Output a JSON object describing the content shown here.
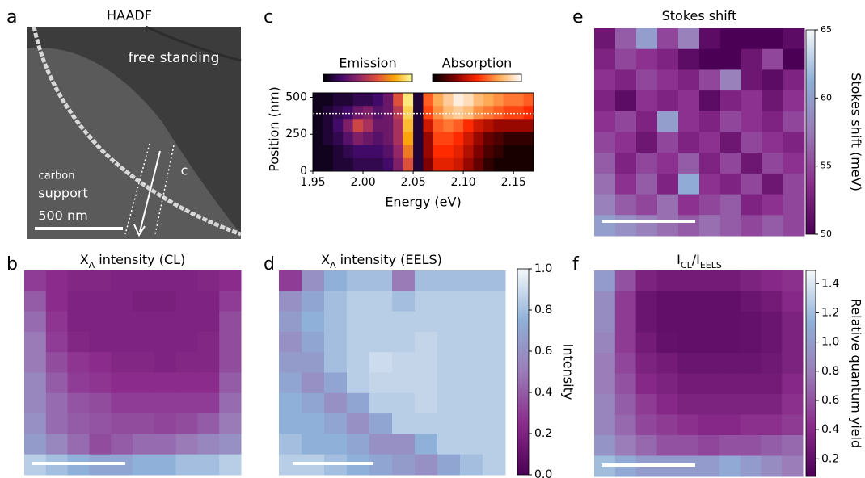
{
  "chart_data": [
    {
      "type": "image",
      "panel": "a",
      "title": "HAADF",
      "region_top": "free standing",
      "region_bottom": [
        "carbon",
        "support"
      ],
      "scalebar": "500 nm",
      "arrow_label": "c"
    },
    {
      "type": "heatmap",
      "panel": "b",
      "title": [
        {
          "text": "X"
        },
        {
          "text": "A",
          "sub": true
        },
        {
          "text": " intensity (CL)"
        }
      ],
      "clim": [
        0,
        1
      ],
      "colormap": [
        "#4b0055",
        "#8b2c8c",
        "#9a7bb8",
        "#8fb0d8",
        "#f5f8fb"
      ],
      "grid": [
        [
          0.3,
          0.25,
          0.22,
          0.22,
          0.2,
          0.2,
          0.2,
          0.2,
          0.22,
          0.25
        ],
        [
          0.4,
          0.25,
          0.2,
          0.2,
          0.2,
          0.18,
          0.18,
          0.2,
          0.2,
          0.3
        ],
        [
          0.45,
          0.28,
          0.2,
          0.2,
          0.2,
          0.2,
          0.2,
          0.2,
          0.2,
          0.35
        ],
        [
          0.5,
          0.3,
          0.22,
          0.2,
          0.2,
          0.2,
          0.2,
          0.2,
          0.22,
          0.35
        ],
        [
          0.5,
          0.35,
          0.28,
          0.25,
          0.22,
          0.22,
          0.2,
          0.22,
          0.22,
          0.35
        ],
        [
          0.55,
          0.4,
          0.3,
          0.28,
          0.25,
          0.25,
          0.25,
          0.25,
          0.25,
          0.4
        ],
        [
          0.55,
          0.45,
          0.38,
          0.35,
          0.3,
          0.3,
          0.3,
          0.3,
          0.3,
          0.45
        ],
        [
          0.6,
          0.45,
          0.4,
          0.38,
          0.35,
          0.35,
          0.33,
          0.35,
          0.4,
          0.5
        ],
        [
          0.65,
          0.55,
          0.45,
          0.35,
          0.4,
          0.45,
          0.45,
          0.5,
          0.55,
          0.6
        ],
        [
          0.85,
          0.8,
          0.75,
          0.7,
          0.7,
          0.75,
          0.75,
          0.8,
          0.8,
          0.85
        ]
      ]
    },
    {
      "type": "spectrum",
      "panel": "c",
      "xlabel": "Energy (eV)",
      "ylabel": "Position (nm)",
      "xlim": [
        1.95,
        2.17
      ],
      "xticks": [
        1.95,
        {
          "value": 2.0,
          "label": "2.00"
        },
        2.05,
        {
          "value": 2.1,
          "label": "2.10"
        },
        2.15
      ],
      "ylim": [
        0,
        530
      ],
      "yticks": [
        0,
        250,
        500
      ],
      "marker_position": 390,
      "emission": {
        "name": "Emission",
        "xlim": [
          1.95,
          2.06
        ],
        "colormap": [
          "#000004",
          "#420a68",
          "#932667",
          "#dd513a",
          "#fca50a",
          "#fcffa4"
        ],
        "grid": [
          [
            0.05,
            0.05,
            0.1,
            0.1,
            0.15,
            0.15,
            0.2,
            0.3,
            0.6,
            0.95,
            0.1
          ],
          [
            0.05,
            0.1,
            0.15,
            0.2,
            0.3,
            0.35,
            0.25,
            0.3,
            0.5,
            0.9,
            0.1
          ],
          [
            0.05,
            0.1,
            0.2,
            0.35,
            0.55,
            0.45,
            0.3,
            0.3,
            0.45,
            0.85,
            0.1
          ],
          [
            0.05,
            0.1,
            0.15,
            0.25,
            0.35,
            0.3,
            0.25,
            0.3,
            0.45,
            0.8,
            0.1
          ],
          [
            0.05,
            0.05,
            0.1,
            0.15,
            0.2,
            0.2,
            0.2,
            0.25,
            0.4,
            0.7,
            0.1
          ],
          [
            0.05,
            0.05,
            0.1,
            0.1,
            0.15,
            0.15,
            0.15,
            0.2,
            0.35,
            0.6,
            0.1
          ]
        ]
      },
      "absorption": {
        "name": "Absorption",
        "xlim": [
          2.06,
          2.17
        ],
        "colormap": [
          "#000000",
          "#7f0000",
          "#ff2a00",
          "#ffaa55",
          "#ffffff"
        ],
        "grid": [
          [
            0.6,
            0.75,
            0.85,
            0.95,
            0.9,
            0.8,
            0.75,
            0.7,
            0.65,
            0.65,
            0.6
          ],
          [
            0.55,
            0.7,
            0.8,
            0.85,
            0.8,
            0.7,
            0.65,
            0.6,
            0.55,
            0.55,
            0.5
          ],
          [
            0.4,
            0.6,
            0.65,
            0.6,
            0.5,
            0.4,
            0.35,
            0.3,
            0.3,
            0.3,
            0.3
          ],
          [
            0.3,
            0.55,
            0.55,
            0.5,
            0.4,
            0.3,
            0.2,
            0.15,
            0.1,
            0.1,
            0.1
          ],
          [
            0.3,
            0.5,
            0.5,
            0.45,
            0.35,
            0.25,
            0.15,
            0.1,
            0.05,
            0.05,
            0.05
          ],
          [
            0.25,
            0.45,
            0.45,
            0.4,
            0.3,
            0.2,
            0.1,
            0.05,
            0.05,
            0.05,
            0.05
          ]
        ]
      }
    },
    {
      "type": "heatmap",
      "panel": "d",
      "title": [
        {
          "text": "X"
        },
        {
          "text": "A",
          "sub": true
        },
        {
          "text": " intensity (EELS)"
        }
      ],
      "clim": [
        0,
        1
      ],
      "colormap": [
        "#4b0055",
        "#8b2c8c",
        "#9a7bb8",
        "#8fb0d8",
        "#f5f8fb"
      ],
      "colorbar": {
        "label": "Intensity",
        "ticks": [
          {
            "value": 0,
            "label": "0.0"
          },
          0.2,
          0.4,
          0.6,
          0.8,
          {
            "value": 1,
            "label": "1.0"
          }
        ]
      },
      "grid": [
        [
          0.3,
          0.6,
          0.75,
          0.8,
          0.8,
          0.5,
          0.8,
          0.8,
          0.8,
          0.8
        ],
        [
          0.6,
          0.7,
          0.8,
          0.85,
          0.85,
          0.8,
          0.85,
          0.85,
          0.85,
          0.85
        ],
        [
          0.65,
          0.75,
          0.8,
          0.85,
          0.85,
          0.85,
          0.85,
          0.85,
          0.85,
          0.85
        ],
        [
          0.6,
          0.7,
          0.8,
          0.85,
          0.85,
          0.85,
          0.88,
          0.85,
          0.85,
          0.85
        ],
        [
          0.65,
          0.65,
          0.8,
          0.85,
          0.9,
          0.88,
          0.88,
          0.85,
          0.85,
          0.85
        ],
        [
          0.7,
          0.6,
          0.7,
          0.85,
          0.88,
          0.88,
          0.88,
          0.85,
          0.85,
          0.85
        ],
        [
          0.75,
          0.7,
          0.6,
          0.7,
          0.85,
          0.85,
          0.88,
          0.85,
          0.85,
          0.85
        ],
        [
          0.75,
          0.75,
          0.7,
          0.6,
          0.7,
          0.85,
          0.85,
          0.85,
          0.85,
          0.85
        ],
        [
          0.8,
          0.75,
          0.75,
          0.7,
          0.6,
          0.6,
          0.75,
          0.85,
          0.85,
          0.85
        ],
        [
          0.85,
          0.85,
          0.8,
          0.75,
          0.7,
          0.65,
          0.6,
          0.7,
          0.8,
          0.85
        ]
      ]
    },
    {
      "type": "heatmap",
      "panel": "e",
      "title": [
        {
          "text": "Stokes shift"
        }
      ],
      "clim": [
        50,
        65
      ],
      "colormap": [
        "#4b0055",
        "#8b2c8c",
        "#9a7bb8",
        "#8fb0d8",
        "#f5f8fb"
      ],
      "colorbar": {
        "label": "Stokes shift (meV)",
        "ticks": [
          50,
          55,
          60,
          65
        ]
      },
      "grid": [
        [
          52,
          56,
          60,
          55,
          58,
          51,
          50,
          50,
          50,
          51
        ],
        [
          53,
          55,
          54,
          53,
          51,
          50,
          50,
          52,
          55,
          50
        ],
        [
          54,
          53,
          55,
          54,
          53,
          55,
          58,
          52,
          51,
          53
        ],
        [
          53,
          51,
          54,
          53,
          54,
          51,
          53,
          54,
          52,
          54
        ],
        [
          54,
          55,
          53,
          60,
          54,
          53,
          55,
          54,
          53,
          55
        ],
        [
          55,
          54,
          52,
          55,
          53,
          54,
          52,
          55,
          54,
          53
        ],
        [
          56,
          53,
          55,
          54,
          56,
          53,
          55,
          52,
          55,
          54
        ],
        [
          57,
          54,
          56,
          53,
          61,
          54,
          53,
          55,
          52,
          55
        ],
        [
          58,
          56,
          55,
          57,
          54,
          55,
          56,
          53,
          54,
          55
        ],
        [
          60,
          59,
          58,
          57,
          56,
          57,
          56,
          55,
          56,
          55
        ]
      ]
    },
    {
      "type": "heatmap",
      "panel": "f",
      "title": [
        {
          "text": "I"
        },
        {
          "text": "CL",
          "sub": true
        },
        {
          "text": "/I"
        },
        {
          "text": "EELS",
          "sub": true
        }
      ],
      "clim": [
        0.08,
        1.49
      ],
      "colormap": [
        "#4b0055",
        "#8b2c8c",
        "#9a7bb8",
        "#8fb0d8",
        "#f5f8fb"
      ],
      "colorbar": {
        "label": "Relative quantum yield",
        "ticks": [
          0.2,
          0.4,
          0.6,
          0.8,
          {
            "value": 1,
            "label": "1.0"
          },
          1.2,
          1.4
        ]
      },
      "grid": [
        [
          1.0,
          0.6,
          0.35,
          0.3,
          0.3,
          0.3,
          0.3,
          0.35,
          0.4,
          0.45
        ],
        [
          0.9,
          0.5,
          0.25,
          0.2,
          0.2,
          0.2,
          0.2,
          0.25,
          0.3,
          0.4
        ],
        [
          0.9,
          0.5,
          0.25,
          0.2,
          0.2,
          0.2,
          0.2,
          0.22,
          0.25,
          0.35
        ],
        [
          0.85,
          0.5,
          0.3,
          0.22,
          0.2,
          0.2,
          0.2,
          0.22,
          0.25,
          0.35
        ],
        [
          0.8,
          0.55,
          0.35,
          0.3,
          0.25,
          0.25,
          0.25,
          0.25,
          0.28,
          0.35
        ],
        [
          0.8,
          0.6,
          0.4,
          0.35,
          0.3,
          0.3,
          0.3,
          0.3,
          0.3,
          0.4
        ],
        [
          0.85,
          0.65,
          0.5,
          0.4,
          0.35,
          0.35,
          0.35,
          0.35,
          0.35,
          0.45
        ],
        [
          0.85,
          0.7,
          0.55,
          0.5,
          0.45,
          0.4,
          0.4,
          0.45,
          0.45,
          0.5
        ],
        [
          0.95,
          0.8,
          0.7,
          0.6,
          0.6,
          0.55,
          0.6,
          0.6,
          0.65,
          0.7
        ],
        [
          1.2,
          1.1,
          1.0,
          1.0,
          1.0,
          1.0,
          1.1,
          1.0,
          0.9,
          0.8
        ]
      ]
    }
  ]
}
